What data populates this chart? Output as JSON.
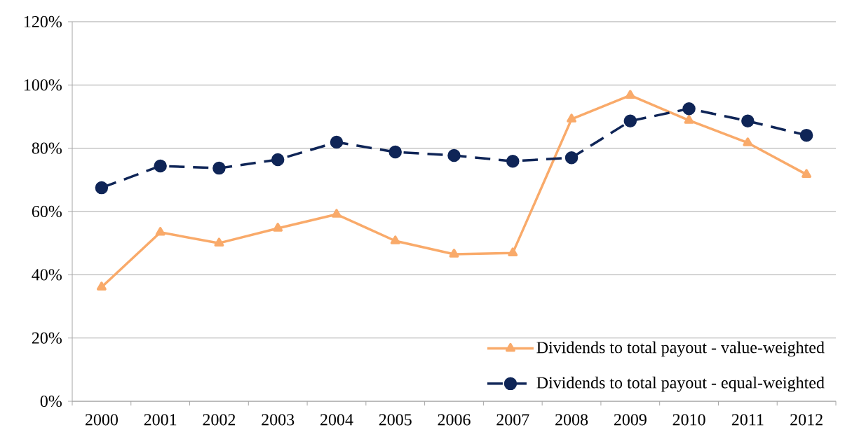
{
  "chart_data": {
    "type": "line",
    "categories": [
      "2000",
      "2001",
      "2002",
      "2003",
      "2004",
      "2005",
      "2006",
      "2007",
      "2008",
      "2009",
      "2010",
      "2011",
      "2012"
    ],
    "series": [
      {
        "name": "Dividends to total payout - value-weighted",
        "color": "#f9aa6a",
        "marker": "triangle",
        "line_style": "solid",
        "values": [
          36.1,
          53.4,
          50.0,
          54.7,
          59.1,
          50.7,
          46.5,
          46.9,
          89.2,
          96.7,
          88.8,
          81.7,
          71.7
        ]
      },
      {
        "name": "Dividends to total payout - equal-weighted",
        "color": "#0f2557",
        "marker": "circle",
        "line_style": "dashed",
        "values": [
          67.5,
          74.4,
          73.7,
          76.4,
          81.9,
          78.8,
          77.7,
          75.9,
          77.0,
          88.6,
          92.5,
          88.6,
          84.1
        ]
      }
    ],
    "ylim": [
      0,
      120
    ],
    "yticks": [
      {
        "value": 0,
        "label": "0%"
      },
      {
        "value": 20,
        "label": "20%"
      },
      {
        "value": 40,
        "label": "40%"
      },
      {
        "value": 60,
        "label": "60%"
      },
      {
        "value": 80,
        "label": "80%"
      },
      {
        "value": 100,
        "label": "100%"
      },
      {
        "value": 120,
        "label": "120%"
      }
    ],
    "grid": "y",
    "legend": "bottom right"
  }
}
